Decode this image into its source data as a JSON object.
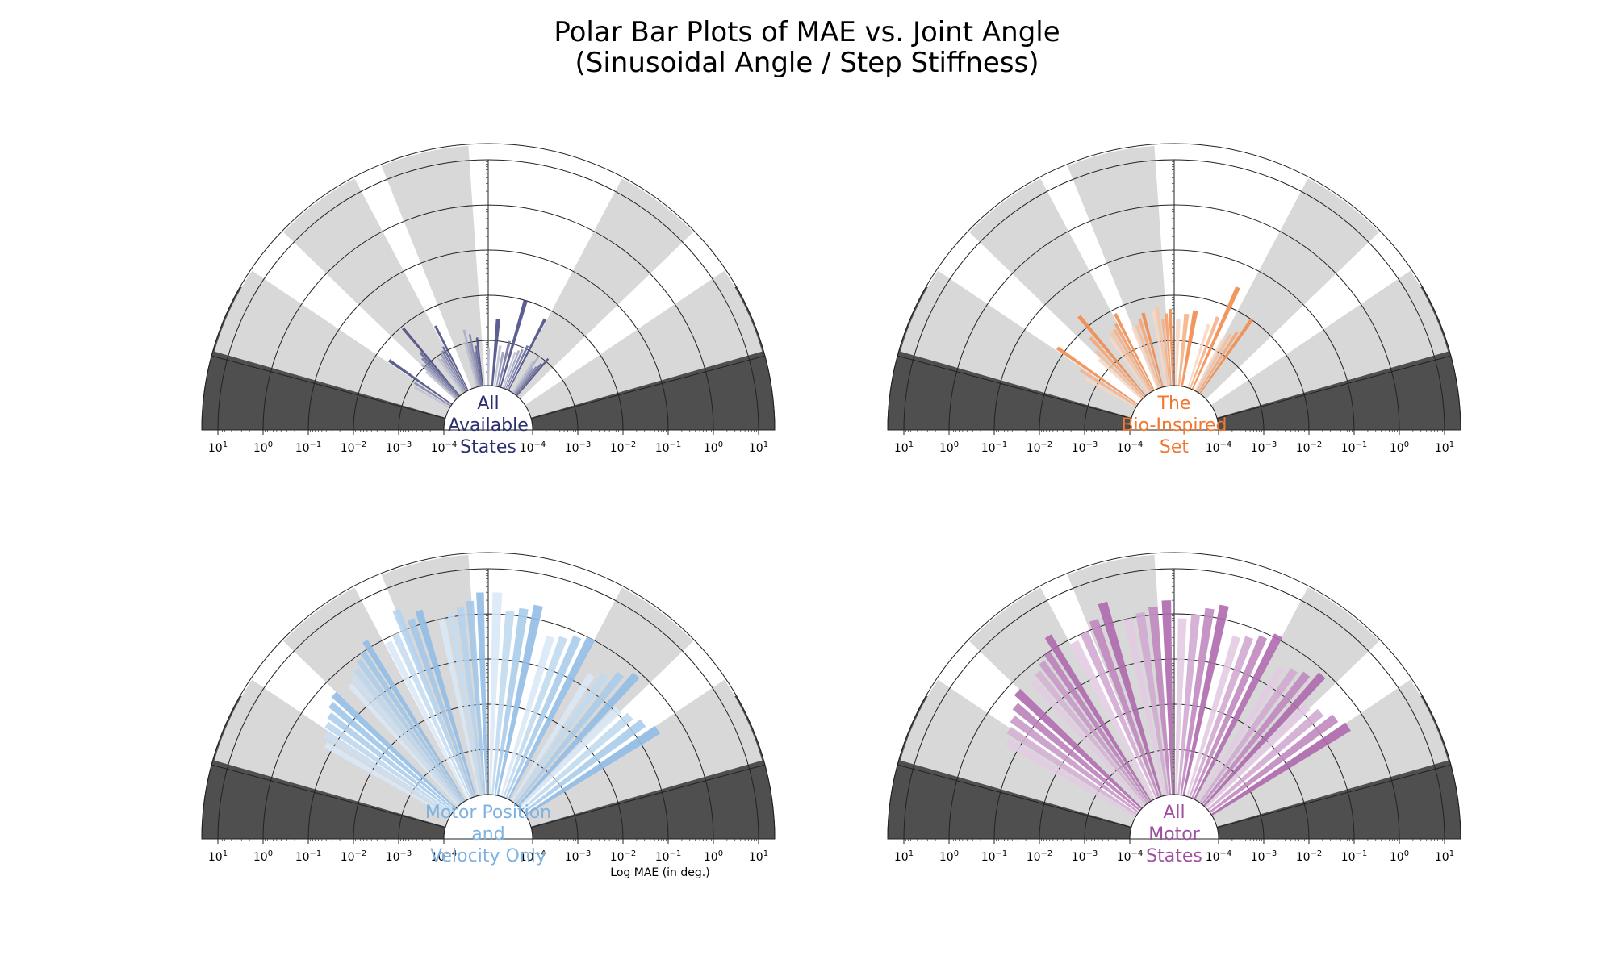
{
  "figure": {
    "title_line1": "Polar Bar Plots of MAE vs. Joint Angle",
    "title_line2": "(Sinusoidal Angle / Step Stiffness)",
    "xlabel": "Log MAE (in deg.)"
  },
  "chart_data": [
    {
      "type": "polar-bar",
      "panel": "top-left",
      "center_label": [
        "All",
        "Available",
        "States"
      ],
      "color": "#2b2f6e",
      "scale": "log",
      "radial_range": [
        0.0001,
        10
      ],
      "tick_labels": [
        "10^1",
        "10^0",
        "10^-1",
        "10^-2",
        "10^-3",
        "10^-4",
        "10^-4",
        "10^-3",
        "10^-2",
        "10^-1",
        "10^0",
        "10^1"
      ],
      "gray_sector_angles_deg": [
        103,
        127,
        155,
        53,
        25
      ],
      "dark_sector_ranges_deg": [
        [
          0,
          30
        ],
        [
          150,
          180
        ]
      ],
      "bar_angle_groups_deg": [
        [
          97,
          105
        ],
        [
          117,
          125
        ],
        [
          130,
          137
        ],
        [
          145,
          150
        ],
        [
          50,
          57
        ],
        [
          63,
          71
        ],
        [
          74,
          82
        ],
        [
          85,
          90
        ]
      ],
      "values": [
        [
          0.0012,
          0.0008,
          0.0006,
          0.0015,
          0.0009,
          0.002,
          0.0011
        ],
        [
          0.004,
          0.0013,
          0.0011,
          0.001,
          0.0008,
          0.0009
        ],
        [
          0.009,
          0.002,
          0.0015,
          0.001,
          0.0012,
          0.0008
        ],
        [
          0.005,
          0.0009,
          0.0008
        ],
        [
          0.0012,
          0.0008,
          0.0006,
          0.0005,
          0.001,
          0.0007
        ],
        [
          0.006,
          0.0012,
          0.0009,
          0.0008,
          0.0007
        ],
        [
          0.01,
          0.0011,
          0.0006,
          0.0008
        ],
        [
          0.003,
          0.0007
        ]
      ]
    },
    {
      "type": "polar-bar",
      "panel": "top-right",
      "center_label": [
        "The",
        "Bio-Inspired",
        "Set"
      ],
      "color": "#f07830",
      "scale": "log",
      "radial_range": [
        0.0001,
        10
      ],
      "tick_labels": [
        "10^1",
        "10^0",
        "10^-1",
        "10^-2",
        "10^-3",
        "10^-4",
        "10^-4",
        "10^-3",
        "10^-2",
        "10^-1",
        "10^0",
        "10^1"
      ],
      "gray_sector_angles_deg": [
        103,
        127,
        155,
        53,
        25
      ],
      "dark_sector_ranges_deg": [
        [
          0,
          30
        ],
        [
          150,
          180
        ]
      ],
      "bar_angle_groups_deg": [
        [
          92,
          100
        ],
        [
          105,
          112
        ],
        [
          117,
          125
        ],
        [
          130,
          137
        ],
        [
          145,
          150
        ],
        [
          55,
          62
        ],
        [
          66,
          72
        ],
        [
          80,
          88
        ]
      ],
      "values": [
        [
          0.005,
          0.004,
          0.003,
          0.006,
          0.005
        ],
        [
          0.005,
          0.004,
          0.003,
          0.003
        ],
        [
          0.008,
          0.005,
          0.004,
          0.004,
          0.003
        ],
        [
          0.02,
          0.006,
          0.003,
          0.002
        ],
        [
          0.015,
          0.003,
          0.002
        ],
        [
          0.01,
          0.004,
          0.003,
          0.002
        ],
        [
          0.03,
          0.005,
          0.003
        ],
        [
          0.005,
          0.004,
          0.003
        ]
      ]
    },
    {
      "type": "polar-bar",
      "panel": "bottom-left",
      "center_label": [
        "Motor Position",
        "and",
        "Velocity Only"
      ],
      "color": "#7fb2e0",
      "scale": "log",
      "radial_range": [
        0.0001,
        10
      ],
      "tick_labels": [
        "10^1",
        "10^0",
        "10^-1",
        "10^-2",
        "10^-3",
        "10^-4",
        "10^-4",
        "10^-3",
        "10^-2",
        "10^-1",
        "10^0",
        "10^1"
      ],
      "gray_sector_angles_deg": [
        103,
        127,
        155,
        53,
        25
      ],
      "dark_sector_ranges_deg": [
        [
          0,
          30
        ],
        [
          150,
          180
        ]
      ],
      "bar_angle_groups_deg": [
        [
          92,
          102
        ],
        [
          107,
          117
        ],
        [
          122,
          132
        ],
        [
          137,
          150
        ],
        [
          33,
          45
        ],
        [
          48,
          58
        ],
        [
          63,
          73
        ],
        [
          78,
          88
        ]
      ],
      "values": [
        [
          3,
          2,
          1.5,
          1.2,
          1
        ],
        [
          2,
          1.5,
          3,
          1,
          0.8
        ],
        [
          1.5,
          1,
          0.8,
          0.6,
          0.5,
          0.4
        ],
        [
          0.5,
          0.4,
          0.3,
          0.25,
          0.2,
          0.15
        ],
        [
          0.3,
          0.2,
          0.15,
          0.12
        ],
        [
          0.8,
          0.5,
          0.3,
          0.2
        ],
        [
          1,
          0.8,
          0.6,
          0.5
        ],
        [
          2,
          1.5,
          1.2,
          3
        ]
      ]
    },
    {
      "type": "polar-bar",
      "panel": "bottom-right",
      "center_label": [
        "All",
        "Motor",
        "States"
      ],
      "color": "#a050a0",
      "scale": "log",
      "radial_range": [
        0.0001,
        10
      ],
      "tick_labels": [
        "10^1",
        "10^0",
        "10^-1",
        "10^-2",
        "10^-3",
        "10^-4",
        "10^-4",
        "10^-3",
        "10^-2",
        "10^-1",
        "10^0",
        "10^1"
      ],
      "gray_sector_angles_deg": [
        103,
        127,
        155,
        53,
        25
      ],
      "dark_sector_ranges_deg": [
        [
          0,
          30
        ],
        [
          150,
          180
        ]
      ],
      "bar_angle_groups_deg": [
        [
          92,
          102
        ],
        [
          107,
          117
        ],
        [
          122,
          132
        ],
        [
          137,
          150
        ],
        [
          33,
          45
        ],
        [
          48,
          58
        ],
        [
          63,
          73
        ],
        [
          78,
          88
        ]
      ],
      "values": [
        [
          2,
          1.5,
          1.2,
          1
        ],
        [
          3,
          1.5,
          1,
          0.8
        ],
        [
          2,
          1,
          0.8,
          0.6,
          0.5
        ],
        [
          0.6,
          0.4,
          0.3,
          0.25,
          0.2
        ],
        [
          0.4,
          0.3,
          0.2,
          0.15
        ],
        [
          0.8,
          0.5,
          0.4,
          0.3
        ],
        [
          1.2,
          0.8,
          0.6,
          0.5
        ],
        [
          2,
          1.5,
          1,
          0.8
        ]
      ]
    }
  ]
}
